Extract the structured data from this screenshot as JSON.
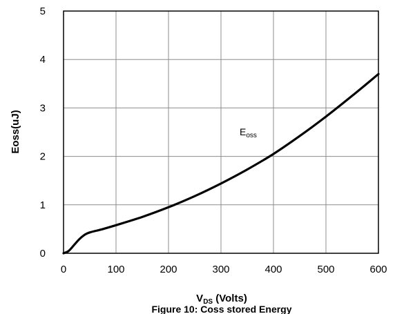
{
  "chart_data": {
    "type": "line",
    "xlabel_main": "V",
    "xlabel_sub": "DS",
    "xlabel_rest": " (Volts)",
    "ylabel": "Eoss(uJ)",
    "caption": "Figure 10: Coss stored Energy",
    "xlim": [
      0,
      600
    ],
    "ylim": [
      0,
      5
    ],
    "xticks": [
      "0",
      "100",
      "200",
      "300",
      "400",
      "500",
      "600"
    ],
    "yticks": [
      "0",
      "1",
      "2",
      "3",
      "4",
      "5"
    ],
    "grid": true,
    "series": [
      {
        "label_main": "E",
        "label_sub": "oss",
        "color": "#000000",
        "x": [
          0,
          10,
          20,
          30,
          40,
          50,
          75,
          100,
          150,
          200,
          250,
          300,
          350,
          400,
          450,
          500,
          550,
          600
        ],
        "y": [
          0,
          0.05,
          0.17,
          0.29,
          0.38,
          0.43,
          0.5,
          0.58,
          0.75,
          0.95,
          1.18,
          1.44,
          1.73,
          2.05,
          2.42,
          2.82,
          3.25,
          3.7
        ]
      }
    ]
  }
}
